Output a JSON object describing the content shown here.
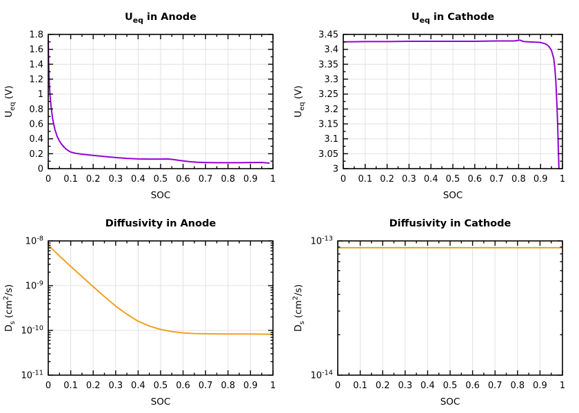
{
  "figure": {
    "background": "#ffffff",
    "grid_color": "#e0e0e0",
    "border_color": "#000000",
    "text_color": "#000000",
    "accent_purple": "#9400d3",
    "accent_orange": "#eda120",
    "legend": "none",
    "grid": true
  },
  "chart_data": [
    {
      "id": "ueq-anode",
      "type": "line",
      "title_plain": "U_eq in Anode",
      "title": [
        {
          "t": "U"
        },
        {
          "sub": "eq"
        },
        {
          "t": " in Anode"
        }
      ],
      "xlabel": "SOC",
      "ylabel_plain": "U_eq (V)",
      "ylabel": [
        {
          "t": "U"
        },
        {
          "sub": "eq"
        },
        {
          "t": " (V)"
        }
      ],
      "color": "#9400d3",
      "yscale": "linear",
      "xlim": [
        0,
        1
      ],
      "ylim": [
        0,
        1.8
      ],
      "xticks": {
        "values": [
          0,
          0.1,
          0.2,
          0.3,
          0.4,
          0.5,
          0.6,
          0.7,
          0.8,
          0.9,
          1
        ],
        "labels": [
          "0",
          "0.1",
          "0.2",
          "0.3",
          "0.4",
          "0.5",
          "0.6",
          "0.7",
          "0.8",
          "0.9",
          "1"
        ]
      },
      "yticks": {
        "values": [
          0,
          0.2,
          0.4,
          0.6,
          0.8,
          1,
          1.2,
          1.4,
          1.6,
          1.8
        ],
        "labels": [
          "0",
          "0.2",
          "0.4",
          "0.6",
          "0.8",
          "1",
          "1.2",
          "1.4",
          "1.6",
          "1.8"
        ]
      },
      "x_minor_step": 0.05,
      "y_minor_step": 0.1,
      "x": [
        0,
        0.002,
        0.005,
        0.008,
        0.012,
        0.016,
        0.02,
        0.03,
        0.04,
        0.05,
        0.06,
        0.07,
        0.08,
        0.09,
        0.1,
        0.12,
        0.15,
        0.18,
        0.2,
        0.25,
        0.3,
        0.35,
        0.4,
        0.45,
        0.5,
        0.53,
        0.56,
        0.6,
        0.63,
        0.66,
        0.7,
        0.75,
        0.8,
        0.85,
        0.9,
        0.95,
        0.985
      ],
      "y": [
        1.73,
        1.4,
        1.13,
        0.98,
        0.85,
        0.75,
        0.66,
        0.52,
        0.43,
        0.37,
        0.325,
        0.29,
        0.26,
        0.24,
        0.222,
        0.207,
        0.194,
        0.184,
        0.178,
        0.163,
        0.149,
        0.137,
        0.13,
        0.128,
        0.128,
        0.13,
        0.121,
        0.104,
        0.093,
        0.086,
        0.082,
        0.08,
        0.08,
        0.08,
        0.082,
        0.083,
        0.074
      ]
    },
    {
      "id": "ueq-cathode",
      "type": "line",
      "title_plain": "U_eq in Cathode",
      "title": [
        {
          "t": "U"
        },
        {
          "sub": "eq"
        },
        {
          "t": " in Cathode"
        }
      ],
      "xlabel": "SOC",
      "ylabel_plain": "U_eq (V)",
      "ylabel": [
        {
          "t": "U"
        },
        {
          "sub": "eq"
        },
        {
          "t": " (V)"
        }
      ],
      "color": "#9400d3",
      "yscale": "linear",
      "xlim": [
        0,
        1
      ],
      "ylim": [
        3,
        3.45
      ],
      "xticks": {
        "values": [
          0,
          0.1,
          0.2,
          0.3,
          0.4,
          0.5,
          0.6,
          0.7,
          0.8,
          0.9,
          1
        ],
        "labels": [
          "0",
          "0.1",
          "0.2",
          "0.3",
          "0.4",
          "0.5",
          "0.6",
          "0.7",
          "0.8",
          "0.9",
          "1"
        ]
      },
      "yticks": {
        "values": [
          3,
          3.05,
          3.1,
          3.15,
          3.2,
          3.25,
          3.3,
          3.35,
          3.4,
          3.45
        ],
        "labels": [
          "3",
          "3.05",
          "3.1",
          "3.15",
          "3.2",
          "3.25",
          "3.3",
          "3.35",
          "3.4",
          "3.45"
        ]
      },
      "x_minor_step": 0.05,
      "y_minor_step": 0.025,
      "x": [
        0,
        0.1,
        0.2,
        0.3,
        0.4,
        0.5,
        0.6,
        0.7,
        0.78,
        0.805,
        0.815,
        0.825,
        0.85,
        0.88,
        0.9,
        0.92,
        0.93,
        0.94,
        0.95,
        0.96,
        0.965,
        0.97,
        0.975,
        0.978,
        0.981,
        0.984
      ],
      "y": [
        3.425,
        3.426,
        3.426,
        3.427,
        3.427,
        3.427,
        3.427,
        3.428,
        3.428,
        3.431,
        3.428,
        3.426,
        3.425,
        3.424,
        3.423,
        3.419,
        3.415,
        3.408,
        3.396,
        3.37,
        3.34,
        3.29,
        3.21,
        3.15,
        3.07,
        3.0
      ]
    },
    {
      "id": "diffusivity-anode",
      "type": "line",
      "title_plain": "Diffusivity in Anode",
      "title": [
        {
          "t": "Diffusivity in Anode"
        }
      ],
      "xlabel": "SOC",
      "ylabel_plain": "D_s (cm^2/s)",
      "ylabel": [
        {
          "t": "D"
        },
        {
          "sub": "s"
        },
        {
          "t": " (cm"
        },
        {
          "sup": "2"
        },
        {
          "t": "/s)"
        }
      ],
      "color": "#eda120",
      "yscale": "log",
      "xlim": [
        0,
        1
      ],
      "ylim": [
        1e-11,
        1e-08
      ],
      "xticks": {
        "values": [
          0,
          0.1,
          0.2,
          0.3,
          0.4,
          0.5,
          0.6,
          0.7,
          0.8,
          0.9,
          1
        ],
        "labels": [
          "0",
          "0.1",
          "0.2",
          "0.3",
          "0.4",
          "0.5",
          "0.6",
          "0.7",
          "0.8",
          "0.9",
          "1"
        ]
      },
      "yticks": {
        "values": [
          1e-11,
          1e-10,
          1e-09,
          1e-08
        ],
        "labels": [
          [
            {
              "t": "10"
            },
            {
              "sup": "-11"
            }
          ],
          [
            {
              "t": "10"
            },
            {
              "sup": "-10"
            }
          ],
          [
            {
              "t": "10"
            },
            {
              "sup": "-9"
            }
          ],
          [
            {
              "t": "10"
            },
            {
              "sup": "-8"
            }
          ]
        ]
      },
      "x_minor_step": 0.05,
      "y_minor_log": true,
      "x": [
        0,
        0.05,
        0.1,
        0.15,
        0.2,
        0.25,
        0.3,
        0.35,
        0.4,
        0.45,
        0.5,
        0.55,
        0.6,
        0.65,
        0.7,
        0.8,
        0.9,
        1.0
      ],
      "y": [
        8.1e-09,
        4.6e-09,
        2.7e-09,
        1.6e-09,
        9.5e-10,
        5.7e-10,
        3.5e-10,
        2.3e-10,
        1.6e-10,
        1.25e-10,
        1.05e-10,
        9.4e-11,
        8.8e-11,
        8.5e-11,
        8.4e-11,
        8.3e-11,
        8.3e-11,
        8.2e-11
      ]
    },
    {
      "id": "diffusivity-cathode",
      "type": "line",
      "title_plain": "Diffusivity in Cathode",
      "title": [
        {
          "t": "Diffusivity in Cathode"
        }
      ],
      "xlabel": "SOC",
      "ylabel_plain": "D_s (cm^2/s)",
      "ylabel": [
        {
          "t": "D"
        },
        {
          "sub": "s"
        },
        {
          "t": " (cm"
        },
        {
          "sup": "2"
        },
        {
          "t": "/s)"
        }
      ],
      "color": "#eda120",
      "yscale": "log",
      "xlim": [
        0,
        1
      ],
      "ylim": [
        1e-14,
        1e-13
      ],
      "xticks": {
        "values": [
          0,
          0.1,
          0.2,
          0.3,
          0.4,
          0.5,
          0.6,
          0.7,
          0.8,
          0.9,
          1
        ],
        "labels": [
          "0",
          "0.1",
          "0.2",
          "0.3",
          "0.4",
          "0.5",
          "0.6",
          "0.7",
          "0.8",
          "0.9",
          "1"
        ]
      },
      "yticks": {
        "values": [
          1e-14,
          1e-13
        ],
        "labels": [
          [
            {
              "t": "10"
            },
            {
              "sup": "-14"
            }
          ],
          [
            {
              "t": "10"
            },
            {
              "sup": "-13"
            }
          ]
        ]
      },
      "x_minor_step": 0.05,
      "y_minor_log": true,
      "x": [
        0,
        1
      ],
      "y": [
        8.9e-14,
        8.9e-14
      ]
    }
  ]
}
